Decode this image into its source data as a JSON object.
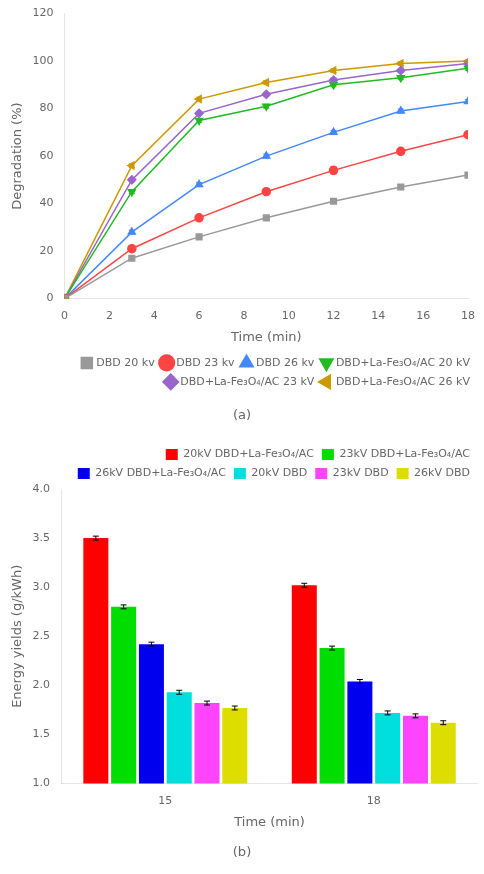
{
  "chart_data": [
    {
      "type": "line",
      "title": "(a)",
      "xlabel": "Time (min)",
      "ylabel": "Degradation (%)",
      "x": [
        0,
        3,
        6,
        9,
        12,
        15,
        18
      ],
      "xlim": [
        0,
        18
      ],
      "xticks": [
        0,
        2,
        4,
        6,
        8,
        10,
        12,
        14,
        16,
        18
      ],
      "ylim": [
        0,
        120
      ],
      "yticks": [
        0,
        20,
        40,
        60,
        80,
        100,
        120
      ],
      "grid": false,
      "legend": "lower right",
      "series": [
        {
          "name": "DBD 20 kv",
          "color": "#999999",
          "marker": "square",
          "values": [
            0,
            17,
            26,
            34,
            41,
            47,
            52
          ],
          "errors": [
            0,
            0.8,
            0.8,
            0.8,
            0.8,
            0.8,
            0.8
          ]
        },
        {
          "name": "DBD 23 kv",
          "color": "#ff4444",
          "marker": "circle",
          "values": [
            0,
            21,
            34,
            45,
            54,
            62,
            69
          ],
          "errors": [
            0,
            0.8,
            0.8,
            0.8,
            1.5,
            0.8,
            0.8
          ]
        },
        {
          "name": "DBD 26 kv",
          "color": "#4488ff",
          "marker": "triangle-up",
          "values": [
            0,
            28,
            48,
            60,
            70,
            79,
            83
          ],
          "errors": [
            0,
            0.8,
            0.8,
            0.8,
            0.8,
            0.8,
            0.8
          ]
        },
        {
          "name": "DBD+La-Fe₃O₄/AC 20 kV",
          "color": "#22bb22",
          "marker": "triangle-down",
          "values": [
            0,
            45,
            75,
            81,
            90,
            93,
            97
          ],
          "errors": [
            0,
            0.8,
            0.8,
            0.8,
            0.8,
            0.8,
            0.8
          ]
        },
        {
          "name": "DBD+La-Fe₃O₄/AC 23 kV",
          "color": "#9966cc",
          "marker": "diamond",
          "values": [
            0,
            50,
            78,
            86,
            92,
            96,
            99
          ],
          "errors": [
            0,
            0.8,
            0.8,
            0.8,
            0.8,
            0.8,
            0.8
          ]
        },
        {
          "name": "DBD+La-Fe₃O₄/AC 26 kV",
          "color": "#cc9900",
          "marker": "triangle-left",
          "values": [
            0,
            56,
            84,
            91,
            96,
            99,
            100
          ],
          "errors": [
            0,
            0.8,
            0.8,
            0.8,
            0.8,
            0.8,
            0.5
          ]
        }
      ]
    },
    {
      "type": "bar",
      "title": "(b)",
      "xlabel": "Time (min)",
      "ylabel": "Energy yields (g/kWh)",
      "categories": [
        "15",
        "18"
      ],
      "ylim": [
        1.0,
        4.0
      ],
      "yticks": [
        {
          "value": 1.0,
          "label": "1.0"
        },
        1.5,
        {
          "value": 2.0,
          "label": "2.0"
        },
        2.5,
        {
          "value": 3.0,
          "label": "3.0"
        },
        3.5,
        {
          "value": 4.0,
          "label": "4.0"
        }
      ],
      "grid": false,
      "legend": "upper right",
      "series": [
        {
          "name": "20kV DBD+La-Fe₃O₄/AC",
          "color": "#ff0000",
          "values": [
            3.5,
            3.02
          ],
          "errors": [
            0.02,
            0.02
          ]
        },
        {
          "name": "23kV DBD+La-Fe₃O₄/AC",
          "color": "#00dd00",
          "values": [
            2.8,
            2.38
          ],
          "errors": [
            0.02,
            0.02
          ]
        },
        {
          "name": "26kV DBD+La-Fe₃O₄/AC",
          "color": "#0000ee",
          "values": [
            2.42,
            2.04
          ],
          "errors": [
            0.02,
            0.02
          ]
        },
        {
          "name": "20kV DBD",
          "color": "#00dddd",
          "values": [
            1.93,
            1.72
          ],
          "errors": [
            0.02,
            0.02
          ]
        },
        {
          "name": "23kV DBD",
          "color": "#ff44ff",
          "values": [
            1.82,
            1.69
          ],
          "errors": [
            0.02,
            0.02
          ]
        },
        {
          "name": "26kV DBD",
          "color": "#dddd00",
          "values": [
            1.77,
            1.62
          ],
          "errors": [
            0.02,
            0.02
          ]
        }
      ]
    }
  ]
}
